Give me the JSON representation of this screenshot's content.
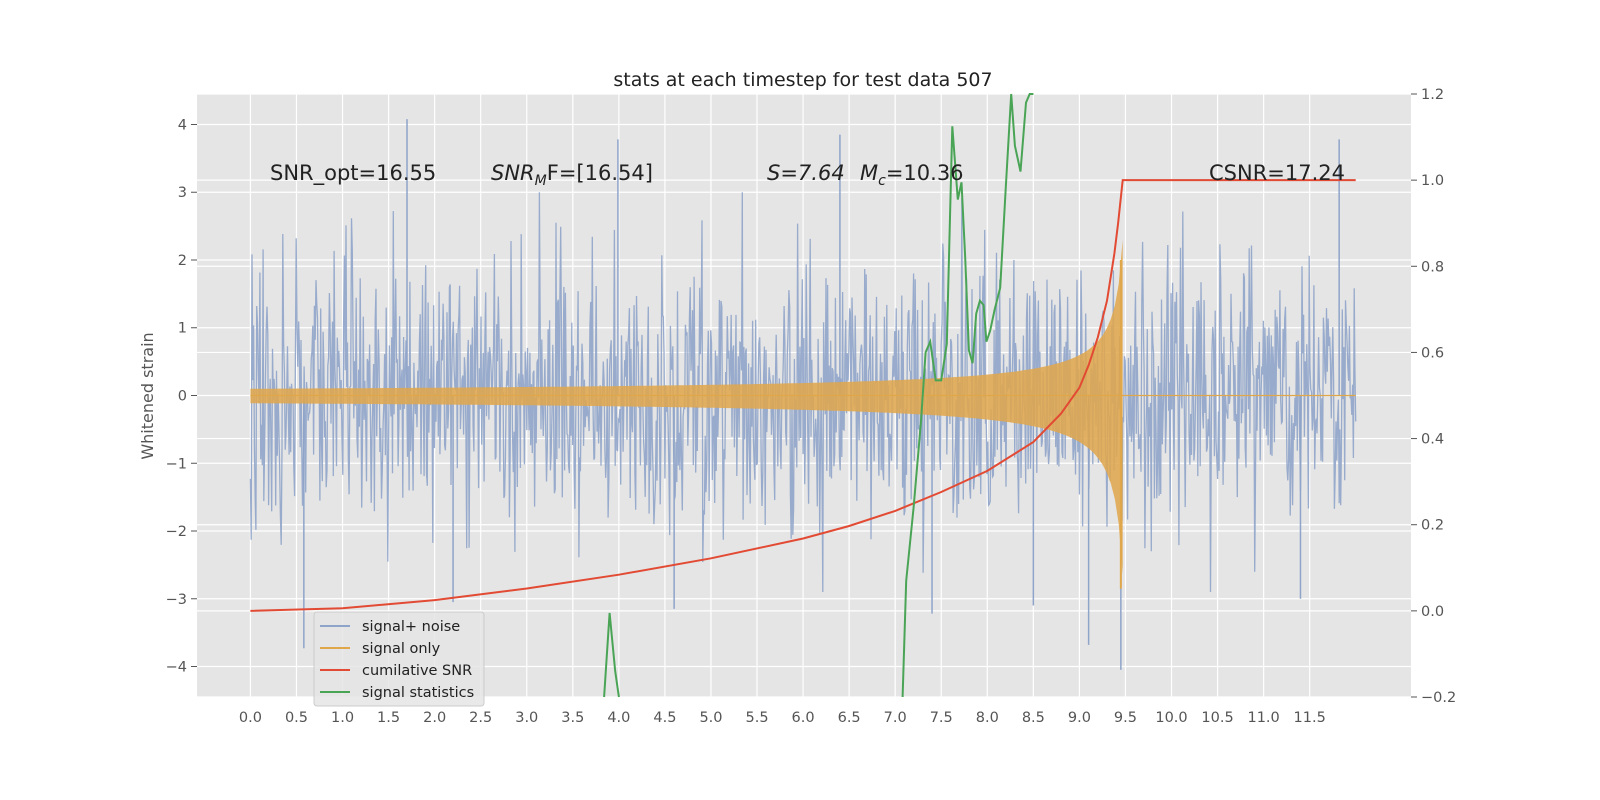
{
  "chart_data": {
    "type": "line",
    "title": "stats at each timestep for test data 507",
    "ylabel": "Whitened strain",
    "xlabel": "",
    "xlim": [
      -0.58,
      12.6
    ],
    "ylim": [
      -4.45,
      4.45
    ],
    "y2lim": [
      -0.2,
      1.2
    ],
    "xticks": [
      "0.0",
      "0.5",
      "1.0",
      "1.5",
      "2.0",
      "2.5",
      "3.0",
      "3.5",
      "4.0",
      "4.5",
      "5.0",
      "5.5",
      "6.0",
      "6.5",
      "7.0",
      "7.5",
      "8.0",
      "8.5",
      "9.0",
      "9.5",
      "10.0",
      "10.5",
      "11.0",
      "11.5"
    ],
    "yticks": [
      "4",
      "3",
      "2",
      "1",
      "0",
      "−1",
      "−2",
      "−3",
      "−4"
    ],
    "y2ticks": [
      "1.2",
      "1.0",
      "0.8",
      "0.6",
      "0.4",
      "0.2",
      "0.0",
      "−0.2"
    ],
    "grid": true,
    "legend_position": "lower-left",
    "colors": {
      "background": "#e5e5e5",
      "grid": "#ffffff",
      "signal_noise": "#8fa4c9",
      "signal_only": "#e0a64a",
      "cumulative_snr": "#e24a33",
      "signal_statistics": "#4aa456"
    },
    "annotations": {
      "snr_opt": "SNR_opt=16.55",
      "snr_mf_base": "SNR",
      "snr_mf_sub": "M",
      "snr_mf_rest": "F=[16.54]",
      "s_value": "S=7.64",
      "mc_base": "M",
      "mc_sub": "c",
      "mc_rest": "=10.36",
      "csnr": "CSNR=17.24"
    },
    "series": [
      {
        "name": "signal+ noise",
        "kind": "noise",
        "t_range": [
          0.0,
          12.0
        ],
        "envelope_1sigma": 1.0,
        "visible_peaks": [
          [
            1.7,
            4.08
          ],
          [
            3.99,
            3.78
          ],
          [
            6.4,
            3.85
          ],
          [
            11.82,
            3.78
          ],
          [
            0.58,
            -3.73
          ],
          [
            9.45,
            -4.05
          ],
          [
            9.1,
            -3.68
          ],
          [
            7.4,
            -3.22
          ],
          [
            4.6,
            -3.15
          ],
          [
            11.4,
            -3.0
          ],
          [
            8.5,
            -3.1
          ],
          [
            2.2,
            -3.05
          ]
        ]
      },
      {
        "name": "signal only",
        "kind": "chirp",
        "t_merger": 9.47,
        "peak_amplitude": 2.3
      },
      {
        "name": "cumilative SNR",
        "axis": "right",
        "x": [
          0.0,
          1.0,
          2.0,
          3.0,
          4.0,
          5.0,
          6.0,
          6.5,
          7.0,
          7.5,
          8.0,
          8.5,
          8.8,
          9.0,
          9.1,
          9.2,
          9.3,
          9.38,
          9.42,
          9.47,
          12.0
        ],
        "y": [
          0.0,
          0.006,
          0.025,
          0.052,
          0.084,
          0.122,
          0.168,
          0.197,
          0.232,
          0.276,
          0.325,
          0.392,
          0.458,
          0.518,
          0.57,
          0.635,
          0.72,
          0.83,
          0.9,
          1.0,
          1.0
        ]
      },
      {
        "name": "signal statistics",
        "axis": "right",
        "segments": [
          {
            "x": [
              3.84,
              3.9,
              3.96,
              4.0
            ],
            "y": [
              -0.2,
              -0.005,
              -0.14,
              -0.2
            ]
          },
          {
            "x": [
              7.08,
              7.12,
              7.2,
              7.28,
              7.33,
              7.38,
              7.44,
              7.5,
              7.56,
              7.62,
              7.68,
              7.72,
              7.76,
              7.8,
              7.84,
              7.88,
              7.92,
              7.96,
              7.99,
              8.03,
              8.08,
              8.14,
              8.2,
              8.26,
              8.3,
              8.36,
              8.42,
              8.46,
              8.5
            ],
            "y": [
              -0.2,
              0.07,
              0.24,
              0.44,
              0.6,
              0.625,
              0.535,
              0.535,
              0.62,
              1.125,
              0.955,
              0.995,
              0.82,
              0.605,
              0.575,
              0.69,
              0.72,
              0.71,
              0.625,
              0.65,
              0.7,
              0.75,
              0.98,
              1.2,
              1.08,
              1.02,
              1.18,
              1.2,
              1.2
            ]
          }
        ]
      }
    ]
  }
}
